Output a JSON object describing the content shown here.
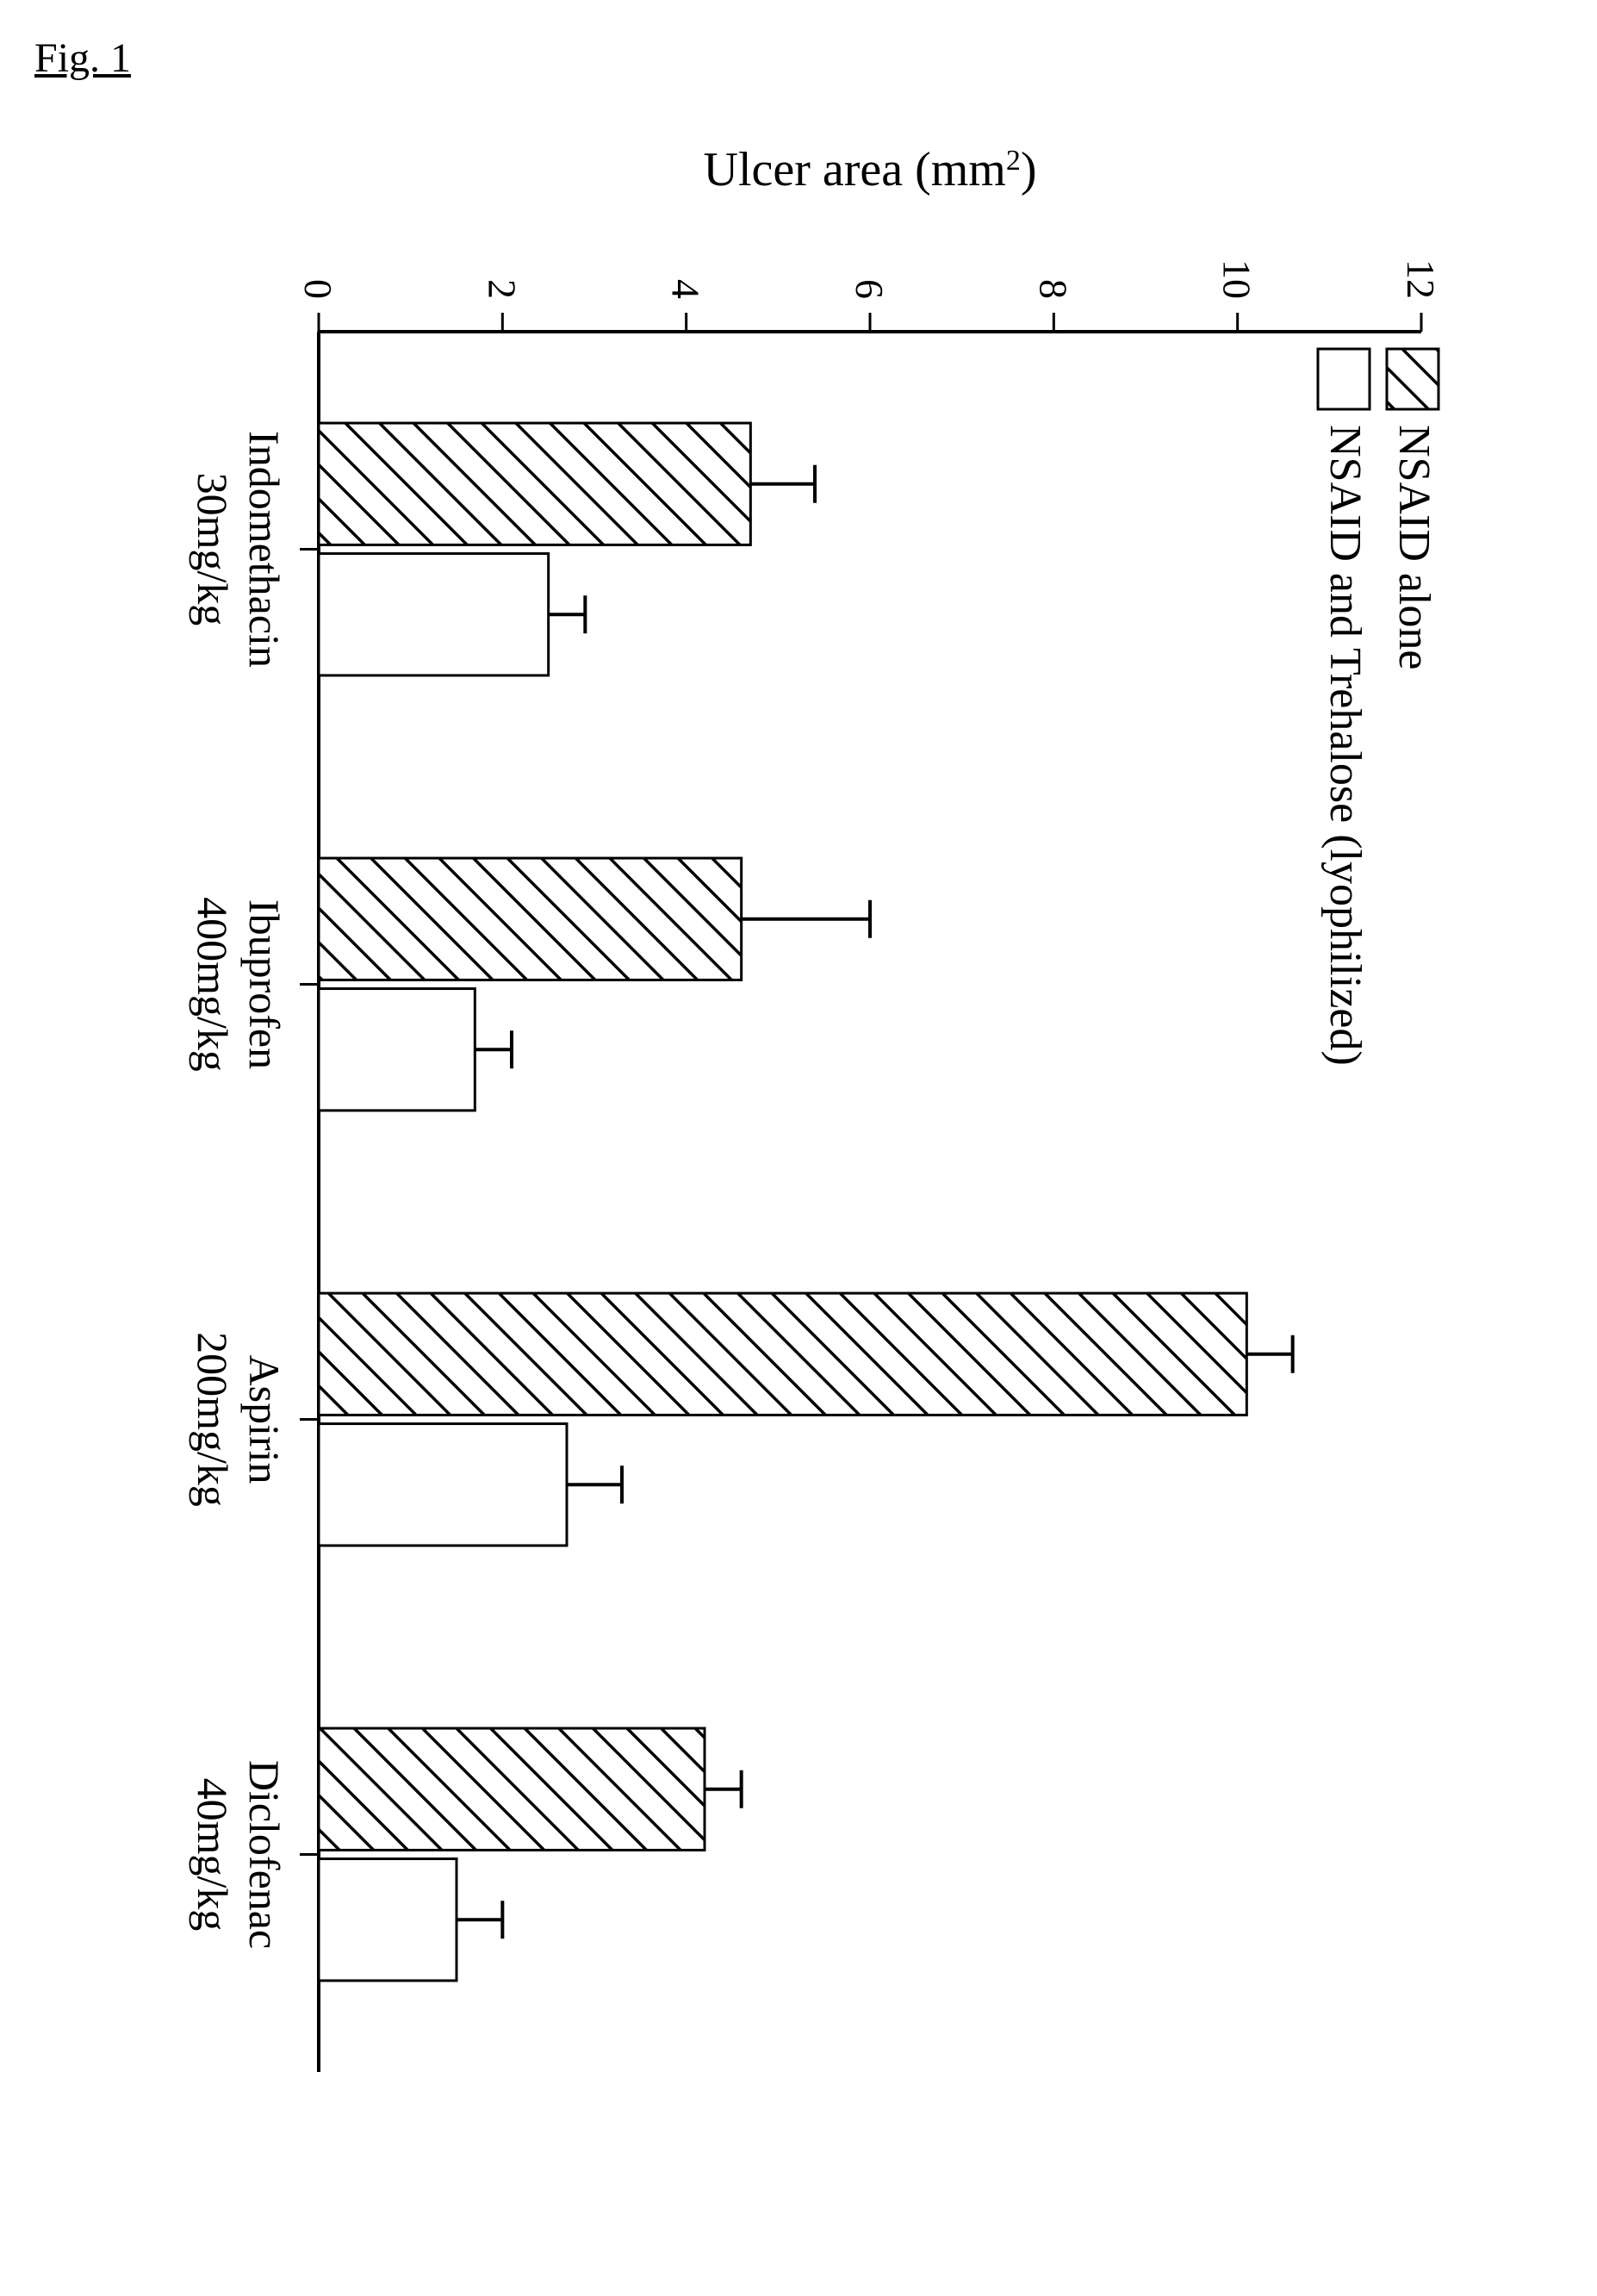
{
  "figure_label": "Fig. 1",
  "chart": {
    "type": "grouped-bar",
    "ylabel_html": "Ulcer area (mm²)",
    "ylim": [
      0,
      12
    ],
    "yticks": [
      0,
      2,
      4,
      6,
      8,
      10,
      12
    ],
    "categories": [
      {
        "line1": "Indomethacin",
        "line2": "30mg/kg"
      },
      {
        "line1": "Ibuprofen",
        "line2": "400mg/kg"
      },
      {
        "line1": "Aspirin",
        "line2": "200mg/kg"
      },
      {
        "line1": "Diclofenac",
        "line2": "40mg/kg"
      }
    ],
    "series": [
      {
        "name": "NSAID alone",
        "fill": "hatch",
        "hatch_color": "#000000",
        "border_color": "#000000",
        "values": [
          4.7,
          4.6,
          10.1,
          4.2
        ],
        "error_upper": [
          0.7,
          1.4,
          0.5,
          0.4
        ]
      },
      {
        "name": "NSAID and Trehalose (lyophilized)",
        "fill": "none",
        "border_color": "#000000",
        "values": [
          2.5,
          1.7,
          2.7,
          1.5
        ],
        "error_upper": [
          0.4,
          0.4,
          0.6,
          0.5
        ]
      }
    ],
    "background_color": "#ffffff",
    "axis_color": "#000000",
    "bar_border_width": 3,
    "error_bar_width": 4,
    "legend_position": "top-left",
    "font_family": "Times New Roman",
    "title_fontsize": 48,
    "yaxis_label_fontsize": 56,
    "tick_label_fontsize": 46,
    "category_label_fontsize": 50,
    "legend_fontsize": 52
  }
}
